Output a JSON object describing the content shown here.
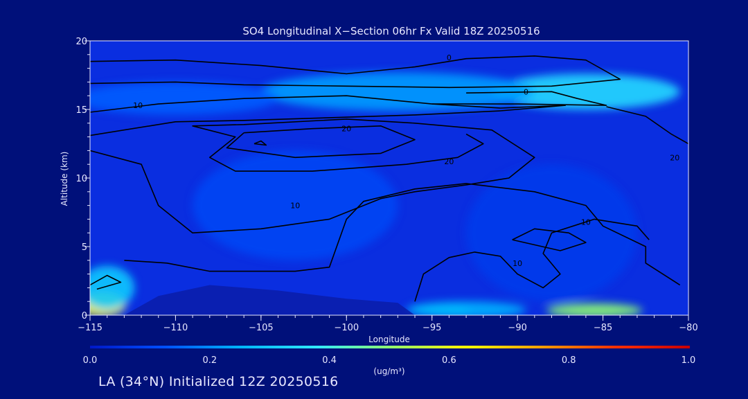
{
  "chart_data": {
    "type": "heatmap",
    "title": "SO4 Longitudinal X−Section 06hr  Fx Valid 18Z 20250516",
    "xlabel": "Longitude",
    "ylabel": "Altitude (km)",
    "xlim": [
      -115,
      -80
    ],
    "ylim": [
      0,
      20
    ],
    "x_ticks": [
      -115,
      -110,
      -105,
      -100,
      -95,
      -90,
      -85,
      -80
    ],
    "x_tick_labels": [
      "−115",
      "−110",
      "−105",
      "−100",
      "−95",
      "−90",
      "−85",
      "−80"
    ],
    "y_ticks": [
      0,
      5,
      10,
      15,
      20
    ],
    "y_tick_labels": [
      "0",
      "5",
      "10",
      "15",
      "20"
    ],
    "grid": false,
    "colorbar": {
      "min": 0.0,
      "max": 1.0,
      "ticks": [
        0.0,
        0.2,
        0.4,
        0.6,
        0.8,
        1.0
      ],
      "tick_labels": [
        "0.0",
        "0.2",
        "0.4",
        "0.6",
        "0.8",
        "1.0"
      ],
      "unit_label": "(ug/m³)",
      "colors": [
        "#0018c8",
        "#0050ff",
        "#00b4ff",
        "#30e8ff",
        "#90ff70",
        "#ffff00",
        "#ffa000",
        "#ff3000",
        "#c80000"
      ]
    },
    "field_blobs": [
      {
        "lon": -114.3,
        "alt": 0.8,
        "rlon": 1.4,
        "ralt": 0.9,
        "value": 0.62
      },
      {
        "lon": -114.0,
        "alt": 2.0,
        "rlon": 1.6,
        "ralt": 1.6,
        "value": 0.3
      },
      {
        "lon": -94.5,
        "alt": 0.35,
        "rlon": 1.8,
        "ralt": 0.45,
        "value": 0.4
      },
      {
        "lon": -85.5,
        "alt": 0.35,
        "rlon": 2.8,
        "ralt": 0.5,
        "value": 0.5
      },
      {
        "lon": -93.0,
        "alt": 0.4,
        "rlon": 3.5,
        "ralt": 0.6,
        "value": 0.25
      },
      {
        "lon": -86.0,
        "alt": 16.3,
        "rlon": 5.5,
        "ralt": 1.3,
        "value": 0.34
      },
      {
        "lon": -97.0,
        "alt": 16.3,
        "rlon": 8.0,
        "ralt": 1.4,
        "value": 0.22
      },
      {
        "lon": -110.0,
        "alt": 15.8,
        "rlon": 6.0,
        "ralt": 1.2,
        "value": 0.14
      },
      {
        "lon": -103.0,
        "alt": 8.0,
        "rlon": 6.0,
        "ralt": 4.0,
        "value": 0.1
      },
      {
        "lon": -88.0,
        "alt": 6.0,
        "rlon": 5.0,
        "ralt": 5.0,
        "value": 0.08
      }
    ],
    "contours": [
      {
        "label": "0",
        "label_at": [
          -94.0,
          18.8
        ],
        "points": [
          [
            -115,
            18.5
          ],
          [
            -110,
            18.6
          ],
          [
            -105,
            18.2
          ],
          [
            -100,
            17.6
          ],
          [
            -96,
            18.1
          ],
          [
            -93,
            18.7
          ],
          [
            -89,
            18.9
          ],
          [
            -86,
            18.6
          ],
          [
            -84,
            17.2
          ],
          [
            -88,
            16.7
          ],
          [
            -94,
            16.6
          ],
          [
            -100,
            16.7
          ],
          [
            -106,
            16.8
          ],
          [
            -110,
            17.0
          ],
          [
            -115,
            16.9
          ]
        ]
      },
      {
        "label": "0",
        "label_at": [
          -89.5,
          16.3
        ],
        "points": [
          [
            -93,
            16.2
          ],
          [
            -88,
            16.3
          ],
          [
            -86.5,
            15.8
          ],
          [
            -84.8,
            15.3
          ],
          [
            -90,
            15.4
          ],
          [
            -95,
            15.4
          ]
        ]
      },
      {
        "label": "10",
        "label_at": [
          -112.2,
          15.3
        ],
        "points": [
          [
            -115,
            14.8
          ],
          [
            -111,
            15.4
          ],
          [
            -106,
            15.8
          ],
          [
            -100,
            16.0
          ],
          [
            -95,
            15.4
          ],
          [
            -91,
            15.1
          ],
          [
            -87.2,
            15.3
          ],
          [
            -91,
            14.9
          ],
          [
            -96,
            14.6
          ],
          [
            -101,
            14.4
          ],
          [
            -106,
            14.2
          ],
          [
            -110,
            14.1
          ],
          [
            -115,
            13.1
          ]
        ]
      },
      {
        "label": "20",
        "label_at": [
          -100.0,
          13.6
        ],
        "points": [
          [
            -106,
            13.3
          ],
          [
            -102,
            13.6
          ],
          [
            -98,
            13.8
          ],
          [
            -96,
            12.8
          ],
          [
            -98,
            11.8
          ],
          [
            -103,
            11.5
          ],
          [
            -107,
            12.2
          ],
          [
            -106,
            13.3
          ]
        ]
      },
      {
        "label": "",
        "label_at": [
          -105,
          12.5
        ],
        "points": [
          [
            -105.4,
            12.5
          ],
          [
            -105,
            12.7
          ],
          [
            -104.7,
            12.4
          ],
          [
            -105.4,
            12.5
          ]
        ]
      },
      {
        "label": "20",
        "label_at": [
          -94.0,
          11.2
        ],
        "points": [
          [
            -115,
            12.0
          ],
          [
            -112,
            11.0
          ],
          [
            -111,
            8.0
          ],
          [
            -109,
            6.0
          ],
          [
            -105,
            6.3
          ],
          [
            -101,
            7.0
          ],
          [
            -98,
            8.5
          ],
          [
            -96,
            9.0
          ],
          [
            -93,
            9.5
          ],
          [
            -90.5,
            10.0
          ],
          [
            -89,
            11.5
          ],
          [
            -91.5,
            13.5
          ],
          [
            -96,
            14.0
          ],
          [
            -100,
            14.3
          ],
          [
            -106,
            13.9
          ],
          [
            -109,
            13.8
          ],
          [
            -106.5,
            13.0
          ],
          [
            -108,
            11.5
          ],
          [
            -106.5,
            10.5
          ],
          [
            -102,
            10.5
          ],
          [
            -96.5,
            11.0
          ],
          [
            -93.5,
            11.5
          ],
          [
            -92,
            12.5
          ],
          [
            -93,
            13.2
          ]
        ]
      },
      {
        "label": "10",
        "label_at": [
          -103.0,
          8.0
        ],
        "points": [
          [
            -113,
            4.0
          ],
          [
            -110.5,
            3.8
          ],
          [
            -108,
            3.2
          ],
          [
            -103,
            3.2
          ],
          [
            -101,
            3.5
          ],
          [
            -100,
            7.0
          ],
          [
            -99,
            8.3
          ],
          [
            -96,
            9.2
          ],
          [
            -93,
            9.6
          ],
          [
            -89,
            9.0
          ],
          [
            -86,
            8.0
          ],
          [
            -85,
            6.5
          ],
          [
            -82.5,
            5.0
          ],
          [
            -82.5,
            3.8
          ],
          [
            -80.5,
            2.2
          ]
        ]
      },
      {
        "label": "10",
        "label_at": [
          -90.0,
          3.8
        ],
        "points": [
          [
            -96,
            1.0
          ],
          [
            -95.5,
            3.0
          ],
          [
            -94,
            4.2
          ],
          [
            -92.5,
            4.6
          ],
          [
            -91,
            4.3
          ],
          [
            -90,
            3.0
          ],
          [
            -88.5,
            2.0
          ],
          [
            -87.5,
            3.0
          ],
          [
            -88.5,
            4.5
          ],
          [
            -88,
            6.0
          ],
          [
            -85.5,
            7.0
          ],
          [
            -83,
            6.5
          ],
          [
            -82.3,
            5.5
          ]
        ]
      },
      {
        "label": "10",
        "label_at": [
          -86.0,
          6.8
        ],
        "points": [
          [
            -90.3,
            5.5
          ],
          [
            -89,
            6.3
          ],
          [
            -87,
            6.0
          ],
          [
            -86,
            5.3
          ],
          [
            -87.5,
            4.7
          ],
          [
            -90.3,
            5.5
          ]
        ]
      },
      {
        "label": "",
        "label_at": [
          -114,
          2.5
        ],
        "points": [
          [
            -115,
            2.2
          ],
          [
            -114,
            2.9
          ],
          [
            -113.2,
            2.4
          ],
          [
            -114.6,
            1.9
          ]
        ]
      },
      {
        "label": "20",
        "label_at": [
          -80.8,
          11.5
        ],
        "points": [
          [
            -84.8,
            15.2
          ],
          [
            -82.5,
            14.5
          ],
          [
            -81,
            13.2
          ],
          [
            -80,
            12.5
          ]
        ]
      }
    ]
  },
  "footer": {
    "text": "LA (34°N) Initialized 12Z 20250516"
  }
}
